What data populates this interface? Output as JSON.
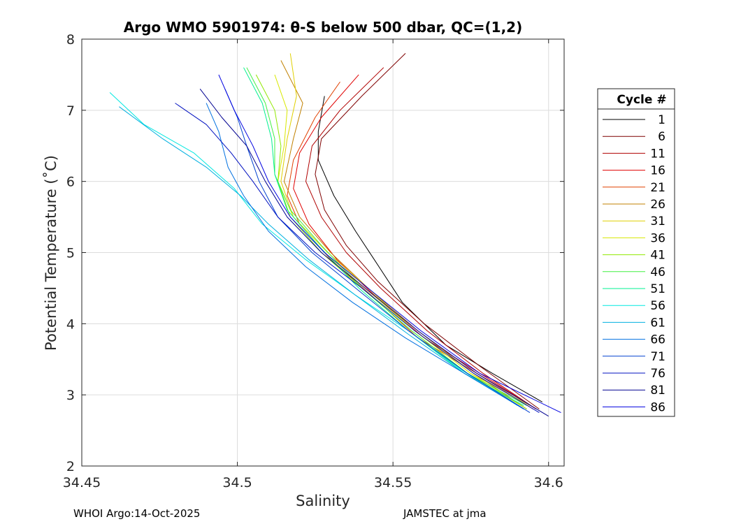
{
  "chart_data": {
    "type": "line",
    "title": "Argo WMO 5901974: θ-S below 500 dbar,  QC=(1,2)",
    "xlabel": "Salinity",
    "ylabel": "Potential Temperature (˚C)",
    "xlim": [
      34.45,
      34.605
    ],
    "ylim": [
      2,
      8
    ],
    "xticks": [
      34.45,
      34.5,
      34.55,
      34.6
    ],
    "xtick_labels": [
      "34.45",
      "34.5",
      "34.55",
      "34.6"
    ],
    "yticks": [
      2,
      3,
      4,
      5,
      6,
      7,
      8
    ],
    "ytick_labels": [
      "2",
      "3",
      "4",
      "5",
      "6",
      "7",
      "8"
    ],
    "grid": true,
    "legend": {
      "title": "Cycle #",
      "placement": "right",
      "entries": [
        {
          "label": "1",
          "color": "#000000"
        },
        {
          "label": "6",
          "color": "#7f0000"
        },
        {
          "label": "11",
          "color": "#b00000"
        },
        {
          "label": "16",
          "color": "#e00000"
        },
        {
          "label": "21",
          "color": "#e04000"
        },
        {
          "label": "26",
          "color": "#c08000"
        },
        {
          "label": "31",
          "color": "#e0d000"
        },
        {
          "label": "36",
          "color": "#d8e800"
        },
        {
          "label": "41",
          "color": "#90e800"
        },
        {
          "label": "46",
          "color": "#40f040"
        },
        {
          "label": "51",
          "color": "#00f090"
        },
        {
          "label": "56",
          "color": "#00e8e0"
        },
        {
          "label": "61",
          "color": "#00b0e0"
        },
        {
          "label": "66",
          "color": "#0070e0"
        },
        {
          "label": "71",
          "color": "#0040d0"
        },
        {
          "label": "76",
          "color": "#0010c0"
        },
        {
          "label": "81",
          "color": "#000090"
        },
        {
          "label": "86",
          "color": "#0000e0"
        }
      ]
    },
    "series": [
      {
        "name": "1",
        "color": "#000000",
        "x": [
          34.528,
          34.526,
          34.526,
          34.531,
          34.538,
          34.544,
          34.553,
          34.567,
          34.582,
          34.598
        ],
        "y": [
          7.2,
          6.7,
          6.3,
          5.8,
          5.3,
          4.9,
          4.3,
          3.7,
          3.3,
          2.9
        ]
      },
      {
        "name": "6",
        "color": "#7f0000",
        "x": [
          34.554,
          34.54,
          34.527,
          34.525,
          34.528,
          34.535,
          34.545,
          34.56,
          34.578,
          34.597
        ],
        "y": [
          7.8,
          7.2,
          6.6,
          6.1,
          5.6,
          5.1,
          4.6,
          4.0,
          3.4,
          2.8
        ]
      },
      {
        "name": "11",
        "color": "#b00000",
        "x": [
          34.547,
          34.533,
          34.524,
          34.522,
          34.527,
          34.535,
          34.546,
          34.561,
          34.579,
          34.596
        ],
        "y": [
          7.6,
          7.0,
          6.5,
          6.0,
          5.5,
          5.0,
          4.5,
          3.9,
          3.3,
          2.8
        ]
      },
      {
        "name": "16",
        "color": "#e00000",
        "x": [
          34.539,
          34.527,
          34.52,
          34.518,
          34.523,
          34.532,
          34.544,
          34.56,
          34.578,
          34.596
        ],
        "y": [
          7.5,
          6.9,
          6.4,
          5.9,
          5.4,
          4.9,
          4.4,
          3.8,
          3.3,
          2.8
        ]
      },
      {
        "name": "21",
        "color": "#e04000",
        "x": [
          34.533,
          34.525,
          34.518,
          34.516,
          34.52,
          34.53,
          34.543,
          34.558,
          34.577,
          34.595
        ],
        "y": [
          7.4,
          6.9,
          6.3,
          5.8,
          5.4,
          4.9,
          4.4,
          3.8,
          3.3,
          2.8
        ]
      },
      {
        "name": "26",
        "color": "#c08000",
        "x": [
          34.514,
          34.521,
          34.518,
          34.515,
          34.52,
          34.53,
          34.542,
          34.558,
          34.576,
          34.593
        ],
        "y": [
          7.7,
          7.1,
          6.6,
          6.0,
          5.5,
          5.0,
          4.5,
          3.9,
          3.3,
          2.8
        ]
      },
      {
        "name": "31",
        "color": "#e0d000",
        "x": [
          34.517,
          34.519,
          34.516,
          34.514,
          34.518,
          34.529,
          34.542,
          34.557,
          34.575,
          34.594
        ],
        "y": [
          7.8,
          7.2,
          6.6,
          6.0,
          5.5,
          5.0,
          4.5,
          3.9,
          3.3,
          2.85
        ]
      },
      {
        "name": "36",
        "color": "#d8e800",
        "x": [
          34.512,
          34.516,
          34.515,
          34.513,
          34.518,
          34.528,
          34.541,
          34.557,
          34.575,
          34.593
        ],
        "y": [
          7.5,
          7.0,
          6.5,
          6.0,
          5.5,
          5.0,
          4.5,
          3.9,
          3.3,
          2.8
        ]
      },
      {
        "name": "41",
        "color": "#90e800",
        "x": [
          34.506,
          34.512,
          34.514,
          34.513,
          34.517,
          34.527,
          34.54,
          34.556,
          34.574,
          34.593
        ],
        "y": [
          7.5,
          7.0,
          6.5,
          6.0,
          5.5,
          5.0,
          4.5,
          3.9,
          3.3,
          2.8
        ]
      },
      {
        "name": "46",
        "color": "#40f040",
        "x": [
          34.503,
          34.509,
          34.512,
          34.512,
          34.517,
          34.527,
          34.54,
          34.556,
          34.574,
          34.593
        ],
        "y": [
          7.6,
          7.1,
          6.6,
          6.1,
          5.6,
          5.1,
          4.5,
          3.9,
          3.3,
          2.85
        ]
      },
      {
        "name": "51",
        "color": "#00f090",
        "x": [
          34.502,
          34.508,
          34.511,
          34.512,
          34.516,
          34.526,
          34.539,
          34.555,
          34.573,
          34.592
        ],
        "y": [
          7.6,
          7.1,
          6.6,
          6.1,
          5.6,
          5.1,
          4.5,
          3.9,
          3.3,
          2.85
        ]
      },
      {
        "name": "56",
        "color": "#00e8e0",
        "x": [
          34.459,
          34.47,
          34.486,
          34.499,
          34.508,
          34.522,
          34.538,
          34.555,
          34.572,
          34.59
        ],
        "y": [
          7.25,
          6.8,
          6.4,
          5.9,
          5.4,
          4.9,
          4.4,
          3.9,
          3.35,
          2.85
        ]
      },
      {
        "name": "61",
        "color": "#00b0e0",
        "x": [
          34.462,
          34.476,
          34.49,
          34.501,
          34.51,
          34.523,
          34.538,
          34.555,
          34.573,
          34.592
        ],
        "y": [
          7.05,
          6.6,
          6.2,
          5.8,
          5.4,
          4.9,
          4.4,
          3.85,
          3.3,
          2.8
        ]
      },
      {
        "name": "66",
        "color": "#0070e0",
        "x": [
          34.49,
          34.494,
          34.497,
          34.502,
          34.51,
          34.522,
          34.537,
          34.554,
          34.573,
          34.592
        ],
        "y": [
          7.1,
          6.7,
          6.2,
          5.8,
          5.3,
          4.8,
          4.3,
          3.8,
          3.3,
          2.8
        ]
      },
      {
        "name": "71",
        "color": "#0040d0",
        "x": [
          34.496,
          34.5,
          34.503,
          34.507,
          34.513,
          34.524,
          34.538,
          34.555,
          34.574,
          34.594
        ],
        "y": [
          7.3,
          6.9,
          6.5,
          6.0,
          5.5,
          5.0,
          4.5,
          3.9,
          3.3,
          2.75
        ]
      },
      {
        "name": "76",
        "color": "#0010c0",
        "x": [
          34.48,
          34.49,
          34.498,
          34.505,
          34.513,
          34.525,
          34.54,
          34.557,
          34.576,
          34.597
        ],
        "y": [
          7.1,
          6.8,
          6.4,
          6.0,
          5.5,
          5.0,
          4.5,
          3.9,
          3.3,
          2.75
        ]
      },
      {
        "name": "81",
        "color": "#000090",
        "x": [
          34.488,
          34.495,
          34.503,
          34.509,
          34.516,
          34.527,
          34.541,
          34.558,
          34.577,
          34.6
        ],
        "y": [
          7.3,
          6.9,
          6.5,
          6.0,
          5.5,
          5.0,
          4.5,
          3.9,
          3.3,
          2.7
        ]
      },
      {
        "name": "86",
        "color": "#0000e0",
        "x": [
          34.494,
          34.499,
          34.505,
          34.51,
          34.517,
          34.528,
          34.542,
          34.559,
          34.578,
          34.604
        ],
        "y": [
          7.5,
          7.0,
          6.5,
          6.0,
          5.5,
          5.0,
          4.5,
          3.9,
          3.3,
          2.75
        ]
      }
    ]
  },
  "footer": {
    "left": "WHOI Argo:14-Oct-2025",
    "right": "JAMSTEC at jma"
  }
}
